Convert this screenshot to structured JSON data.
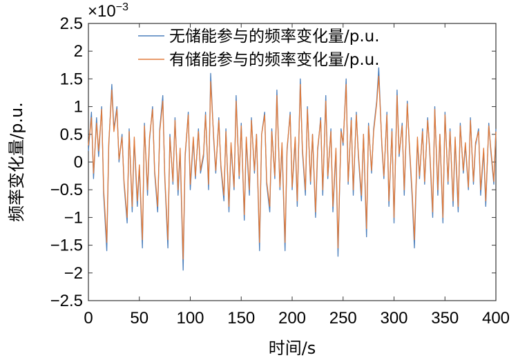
{
  "chart_data": {
    "type": "line",
    "title": "",
    "xlabel": "时间/s",
    "ylabel": "频率变化量/p.u.",
    "xlim": [
      0,
      400
    ],
    "ylim": [
      -2.5,
      2.5
    ],
    "y_multiplier": "×10",
    "y_multiplier_exponent": "−3",
    "xticks": [
      0,
      50,
      100,
      150,
      200,
      250,
      300,
      350,
      400
    ],
    "yticks": [
      2.5,
      2,
      1.5,
      1,
      0.5,
      0,
      -0.5,
      -1,
      -1.5,
      -2,
      -2.5
    ],
    "xtick_labels": [
      "0",
      "50",
      "100",
      "150",
      "200",
      "250",
      "300",
      "350",
      "400"
    ],
    "ytick_labels": [
      "2.5",
      "2",
      "1.5",
      "1",
      "0.5",
      "0",
      "−0.5",
      "−1",
      "−1.5",
      "−2",
      "−2.5"
    ],
    "legend_position": "top",
    "x": [
      0,
      3,
      5,
      8,
      10,
      13,
      15,
      18,
      20,
      23,
      25,
      28,
      30,
      33,
      35,
      38,
      40,
      43,
      45,
      48,
      50,
      53,
      55,
      58,
      60,
      63,
      65,
      68,
      70,
      73,
      75,
      78,
      80,
      83,
      85,
      88,
      90,
      93,
      95,
      98,
      100,
      103,
      105,
      108,
      110,
      113,
      115,
      118,
      120,
      123,
      125,
      128,
      130,
      133,
      135,
      138,
      140,
      143,
      145,
      148,
      150,
      153,
      155,
      158,
      160,
      163,
      165,
      168,
      170,
      173,
      175,
      178,
      180,
      183,
      185,
      188,
      190,
      193,
      195,
      198,
      200,
      203,
      205,
      208,
      210,
      213,
      215,
      218,
      220,
      223,
      225,
      228,
      230,
      233,
      235,
      238,
      240,
      243,
      245,
      248,
      250,
      253,
      255,
      258,
      260,
      263,
      265,
      268,
      270,
      273,
      275,
      278,
      280,
      283,
      285,
      288,
      290,
      293,
      295,
      298,
      300,
      303,
      305,
      308,
      310,
      313,
      315,
      318,
      320,
      323,
      325,
      328,
      330,
      333,
      335,
      338,
      340,
      343,
      345,
      348,
      350,
      353,
      355,
      358,
      360,
      363,
      365,
      368,
      370,
      373,
      375,
      378,
      380,
      383,
      385,
      388,
      390,
      393,
      395,
      398,
      400
    ],
    "series": [
      {
        "name": "无储能参与的频率变化量/p.u.",
        "color": "#4a7ebb",
        "values": [
          0.2,
          0.9,
          -0.3,
          0.8,
          0.1,
          1.0,
          -0.6,
          -1.6,
          0.3,
          1.4,
          0.6,
          1.0,
          0.0,
          0.5,
          -0.4,
          -1.1,
          0.6,
          -0.9,
          0.4,
          -0.8,
          -0.1,
          -1.55,
          0.7,
          -0.6,
          0.4,
          1.0,
          -0.2,
          -0.9,
          0.6,
          1.2,
          -0.3,
          -1.55,
          0.5,
          -0.4,
          0.8,
          -0.6,
          0.2,
          -1.95,
          0.1,
          0.9,
          -0.5,
          0.4,
          -0.3,
          0.6,
          -0.2,
          0.1,
          0.9,
          -0.5,
          1.6,
          0.4,
          -0.2,
          0.8,
          -0.1,
          -0.7,
          0.6,
          -0.9,
          0.3,
          -0.5,
          1.2,
          -0.3,
          0.7,
          -1.05,
          0.4,
          -0.6,
          0.8,
          -0.2,
          0.5,
          -1.6,
          0.5,
          0.9,
          -0.4,
          -0.9,
          0.6,
          -0.3,
          1.3,
          -0.5,
          0.3,
          -1.6,
          0.2,
          0.9,
          -0.5,
          0.4,
          -0.8,
          1.5,
          0.2,
          -0.6,
          1.0,
          -0.4,
          0.5,
          -1.0,
          0.2,
          0.8,
          -0.6,
          1.2,
          -0.3,
          0.6,
          -0.9,
          0.2,
          -1.7,
          0.6,
          0.3,
          1.5,
          -0.4,
          0.8,
          -0.6,
          0.9,
          0.1,
          -0.7,
          0.5,
          -1.35,
          0.7,
          -0.2,
          0.6,
          1.1,
          1.7,
          0.3,
          -0.3,
          0.9,
          -0.8,
          0.6,
          -1.1,
          1.3,
          0.1,
          0.7,
          -0.6,
          1.1,
          0.3,
          -0.7,
          -1.55,
          0.4,
          -0.3,
          0.6,
          -0.4,
          0.8,
          0.2,
          -1.0,
          1.0,
          -0.6,
          0.5,
          -1.1,
          0.9,
          -0.4,
          0.6,
          -0.8,
          0.4,
          -0.9,
          0.7,
          -0.2,
          0.3,
          -0.5,
          0.8,
          -0.4,
          0.3,
          0.6,
          -0.6,
          0.2,
          -0.8,
          0.7,
          0.2,
          -0.4,
          0.6
        ]
      },
      {
        "name": "有储能参与的频率变化量/p.u.",
        "color": "#e07a3a",
        "values": [
          0.3,
          0.8,
          -0.2,
          0.7,
          0.2,
          0.95,
          -0.5,
          -1.45,
          0.35,
          1.3,
          0.55,
          0.95,
          0.05,
          0.45,
          -0.35,
          -1.0,
          0.55,
          -0.8,
          0.45,
          -0.7,
          -0.05,
          -1.4,
          0.65,
          -0.5,
          0.45,
          0.95,
          -0.15,
          -0.8,
          0.55,
          1.1,
          -0.25,
          -1.4,
          0.45,
          -0.35,
          0.75,
          -0.5,
          0.25,
          -1.75,
          0.15,
          0.85,
          -0.4,
          0.45,
          -0.25,
          0.55,
          -0.15,
          0.15,
          0.85,
          -0.4,
          1.45,
          0.45,
          -0.15,
          0.75,
          -0.05,
          -0.6,
          0.55,
          -0.8,
          0.35,
          -0.45,
          1.1,
          -0.25,
          0.65,
          -0.95,
          0.45,
          -0.5,
          0.75,
          -0.15,
          0.5,
          -1.45,
          0.5,
          0.85,
          -0.35,
          -0.8,
          0.55,
          -0.25,
          1.2,
          -0.45,
          0.35,
          -1.45,
          0.25,
          0.85,
          -0.45,
          0.45,
          -0.7,
          1.4,
          0.25,
          -0.5,
          0.95,
          -0.35,
          0.5,
          -0.9,
          0.25,
          0.75,
          -0.5,
          1.1,
          -0.25,
          0.55,
          -0.8,
          0.25,
          -1.55,
          0.55,
          0.35,
          1.4,
          -0.35,
          0.75,
          -0.5,
          0.85,
          0.15,
          -0.6,
          0.5,
          -1.2,
          0.65,
          -0.15,
          0.55,
          1.05,
          1.55,
          0.35,
          -0.25,
          0.85,
          -0.7,
          0.55,
          -1.0,
          1.2,
          0.15,
          0.65,
          -0.5,
          1.05,
          0.35,
          -0.6,
          -1.4,
          0.45,
          -0.25,
          0.55,
          -0.35,
          0.75,
          0.25,
          -0.9,
          0.95,
          -0.5,
          0.5,
          -1.0,
          0.85,
          -0.35,
          0.55,
          -0.7,
          0.45,
          -0.8,
          0.65,
          -0.15,
          0.35,
          -0.45,
          0.75,
          -0.35,
          0.35,
          0.55,
          -0.5,
          0.25,
          -0.7,
          0.65,
          0.25,
          -0.35,
          0.55
        ]
      }
    ]
  }
}
